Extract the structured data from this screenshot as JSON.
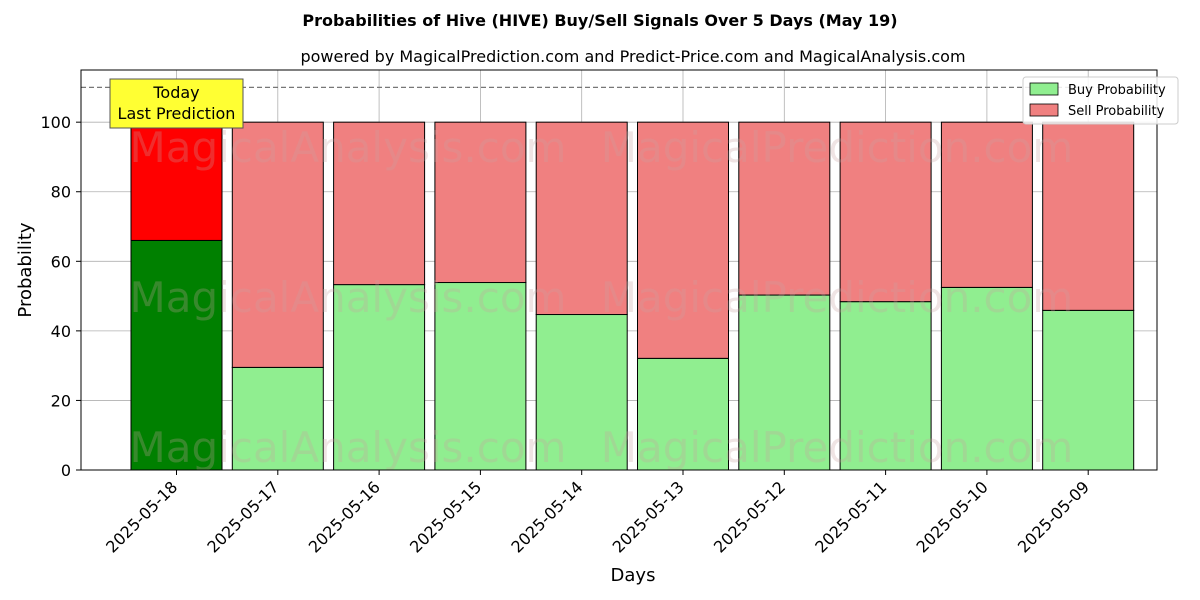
{
  "chart_data": {
    "type": "bar",
    "stacked": true,
    "title": "Probabilities of Hive (HIVE) Buy/Sell Signals Over 5 Days (May 19)",
    "subtitle": "powered by MagicalPrediction.com and Predict-Price.com and MagicalAnalysis.com",
    "xlabel": "Days",
    "ylabel": "Probability",
    "ylim": [
      0,
      115
    ],
    "yticks": [
      0,
      20,
      40,
      60,
      80,
      100
    ],
    "reference_line": 110,
    "grid": true,
    "legend_position": "top-right",
    "categories": [
      "2025-05-18",
      "2025-05-17",
      "2025-05-16",
      "2025-05-15",
      "2025-05-14",
      "2025-05-13",
      "2025-05-12",
      "2025-05-11",
      "2025-05-10",
      "2025-05-09"
    ],
    "series": [
      {
        "name": "Buy Probability",
        "values": [
          66,
          29.5,
          53.3,
          53.9,
          44.7,
          32.1,
          50.3,
          48.4,
          52.5,
          45.9
        ],
        "color": "#90ee90",
        "highlight_color": "#008000"
      },
      {
        "name": "Sell Probability",
        "values": [
          34,
          70.5,
          46.7,
          46.1,
          55.3,
          67.9,
          49.7,
          51.6,
          47.5,
          54.1
        ],
        "color": "#f08080",
        "highlight_color": "#ff0000"
      }
    ],
    "annotation": {
      "lines": [
        "Today",
        "Last Prediction"
      ],
      "background": "#ffff33"
    },
    "watermarks": [
      "MagicalAnalysis.com",
      "MagicalPrediction.com"
    ]
  }
}
